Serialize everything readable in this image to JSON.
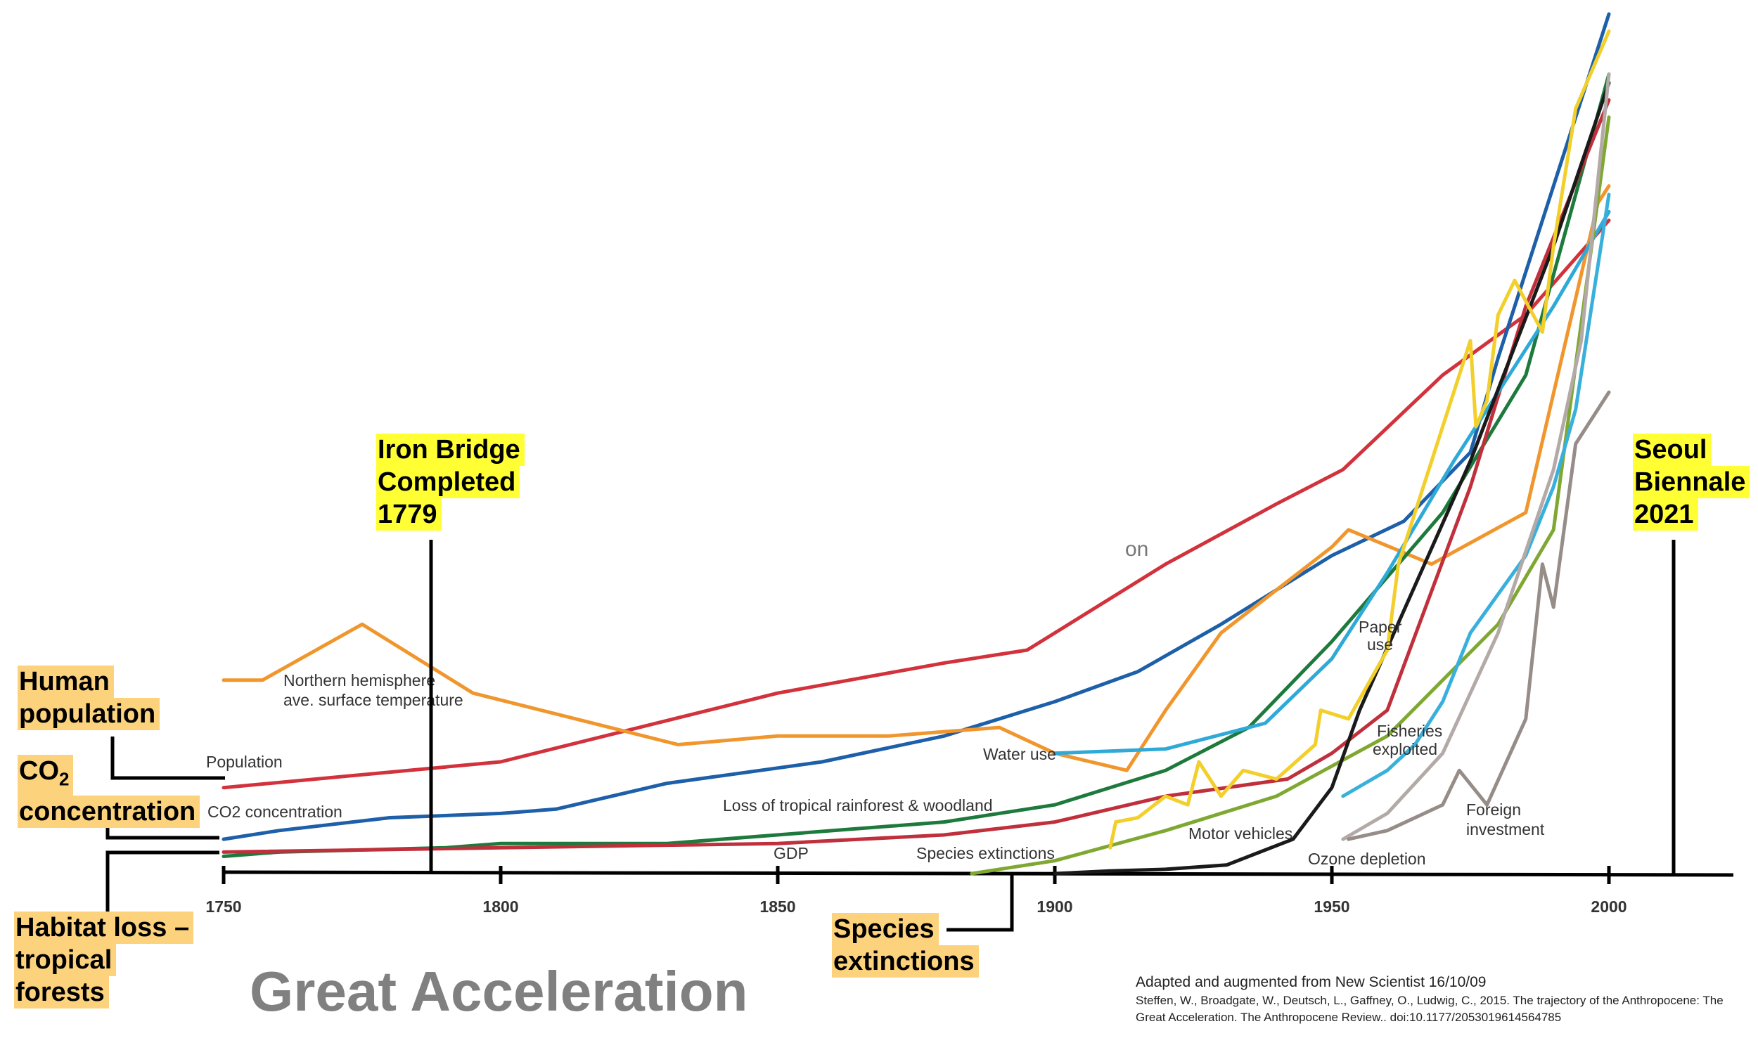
{
  "chart_data": {
    "type": "line",
    "title": "Great Acceleration",
    "x_ticks": [
      "1750",
      "1800",
      "1850",
      "1900",
      "1950",
      "2000"
    ],
    "xlim": [
      1750,
      2022
    ],
    "ylim": [
      0,
      100
    ],
    "y_axis_visible": false,
    "series": [
      {
        "name": "Population",
        "color": "#d2323c",
        "x": [
          1750,
          1800,
          1850,
          1880,
          1895,
          1900,
          1920,
          1940,
          1952,
          1970,
          1985,
          2000
        ],
        "y": [
          10,
          13,
          21,
          24.5,
          26,
          28,
          36,
          43,
          47,
          58,
          65,
          76
        ]
      },
      {
        "name": "CO2 concentration",
        "color": "#1d5fa8",
        "x": [
          1750,
          1760,
          1780,
          1800,
          1810,
          1830,
          1858,
          1880,
          1900,
          1915,
          1930,
          1950,
          1963,
          1975,
          1980,
          2000
        ],
        "y": [
          4,
          5,
          6.5,
          7,
          7.5,
          10.5,
          13,
          16,
          20,
          23.5,
          29,
          37,
          41,
          49,
          60,
          100
        ]
      },
      {
        "name": "Northern hemisphere ave. surface temperature",
        "color": "#f0962d",
        "x": [
          1750,
          1757,
          1775,
          1795,
          1832,
          1850,
          1870,
          1890,
          1900,
          1913,
          1920,
          1930,
          1950,
          1953,
          1968,
          1985,
          1998,
          2000
        ],
        "y": [
          22.5,
          22.5,
          29,
          21,
          15,
          16,
          16,
          17,
          14,
          12,
          19,
          28,
          38,
          40,
          36,
          42,
          78,
          80
        ]
      },
      {
        "name": "Loss of tropical rainforest & woodland",
        "color": "#1e7a3c",
        "x": [
          1750,
          1760,
          1790,
          1800,
          1830,
          1860,
          1880,
          1900,
          1920,
          1935,
          1950,
          1970,
          1985,
          2000
        ],
        "y": [
          2,
          2.5,
          3,
          3.5,
          3.5,
          5,
          6,
          8,
          12,
          17,
          27,
          42,
          58,
          93
        ]
      },
      {
        "name": "GDP",
        "color": "#c0303c",
        "x": [
          1750,
          1800,
          1850,
          1880,
          1900,
          1920,
          1942,
          1950,
          1960,
          1975,
          1985,
          2000
        ],
        "y": [
          2.5,
          3,
          3.5,
          4.5,
          6,
          9,
          11,
          14,
          19,
          45,
          66,
          90
        ]
      },
      {
        "name": "Water use",
        "color": "#2ea9d8",
        "x": [
          1900,
          1920,
          1938,
          1950,
          1960,
          1972,
          1982,
          1990,
          2000
        ],
        "y": [
          14,
          14.5,
          17.5,
          25,
          35,
          48,
          58,
          66,
          77
        ]
      },
      {
        "name": "Species extinctions",
        "color": "#7fa832",
        "x": [
          1885,
          1900,
          1920,
          1940,
          1960,
          1980,
          1990,
          2000
        ],
        "y": [
          0,
          1.5,
          5,
          9,
          16,
          29,
          40,
          88
        ]
      },
      {
        "name": "Motor vehicles",
        "color": "#1a1a1a",
        "x": [
          1900,
          1910,
          1920,
          1931,
          1943,
          1950,
          1955,
          1975,
          1990,
          2000
        ],
        "y": [
          0,
          0.3,
          0.5,
          1,
          4,
          10,
          19,
          48,
          73,
          92
        ]
      },
      {
        "name": "Paper use",
        "color": "#f2cf2a",
        "x": [
          1910,
          1911,
          1915,
          1920,
          1924,
          1926,
          1930,
          1934,
          1940,
          1947,
          1948,
          1953,
          1960,
          1962,
          1975,
          1976,
          1978,
          1980,
          1983,
          1988,
          1990,
          1994,
          2000
        ],
        "y": [
          3,
          6,
          6.5,
          9,
          8,
          13,
          9,
          12,
          11,
          15,
          19,
          18,
          26,
          36,
          62,
          52,
          55,
          65,
          69,
          63,
          73,
          89,
          98
        ]
      },
      {
        "name": "Fisheries exploited",
        "color": "#39b0dc",
        "x": [
          1952,
          1960,
          1965,
          1970,
          1975,
          1985,
          1990,
          1994,
          2000
        ],
        "y": [
          9,
          12,
          15,
          20,
          28,
          37,
          45,
          54,
          79
        ]
      },
      {
        "name": "Ozone depletion",
        "color": "#b3aaa7",
        "x": [
          1952,
          1960,
          1970,
          1980,
          1990,
          1995,
          2000
        ],
        "y": [
          4,
          7,
          14,
          28,
          47,
          62,
          93
        ]
      },
      {
        "name": "Foreign investment",
        "color": "#968c88",
        "x": [
          1953,
          1960,
          1970,
          1973,
          1978,
          1985,
          1988,
          1990,
          1994,
          2000
        ],
        "y": [
          4,
          5,
          8,
          12,
          8,
          18,
          36,
          31,
          50,
          56
        ]
      }
    ],
    "annotations": {
      "population_label": "Population",
      "co2_label": "CO2 concentration",
      "temperature_label_line1": "Northern hemisphere",
      "temperature_label_line2": "ave. surface temperature",
      "rainforest_label": "Loss of tropical rainforest & woodland",
      "gdp_label": "GDP",
      "water_label": "Water use",
      "species_label": "Species extinctions",
      "motor_label": "Motor vehicles",
      "paper_label_line1": "Paper",
      "paper_label_line2": "use",
      "fisheries_label_line1": "Fisheries",
      "fisheries_label_line2": "exploited",
      "ozone_label": "Ozone depletion",
      "foreign_label_line1": "Foreign",
      "foreign_label_line2": "investment"
    }
  },
  "callouts": {
    "human_population": [
      "Human",
      "population"
    ],
    "co2_concentration_prefix": "CO",
    "co2_subscript": "2",
    "co2_concentration_rest": "concentration",
    "habitat_loss": [
      "Habitat loss –",
      "tropical",
      "forests"
    ],
    "iron_bridge": [
      "Iron Bridge",
      "Completed",
      "1779"
    ],
    "species_extinctions": [
      "Species",
      "extinctions"
    ],
    "seoul_biennale": [
      "Seoul",
      "Biennale",
      "2021"
    ]
  },
  "remnant_text": "on",
  "source": {
    "line1": "Adapted and augmented from New Scientist 16/10/09",
    "line2": "Steffen, W., Broadgate, W., Deutsch, L., Gaffney, O., Ludwig, C., 2015. The trajectory of the Anthropocene: The Great Acceleration. The Anthropocene Review.. doi:10.1177/2053019614564785"
  },
  "colors": {
    "callout_orange": "#fdd27c",
    "callout_yellow": "#ffff33",
    "title_gray": "#808080"
  }
}
